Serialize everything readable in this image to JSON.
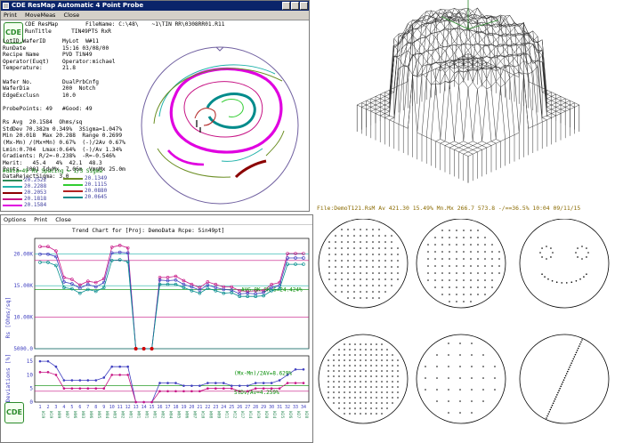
{
  "map_window": {
    "title": "CDE ResMap Automatic 4 Point Probe",
    "menu": [
      "Print",
      "MoveMeas",
      "Close"
    ],
    "logo": "CDE",
    "header_right": "FileName: C:\\48\\    ~1\\TIN RR\\0308RR01.R11",
    "header_rows": [
      "CDE ResMap",
      "RunTitle      TIN49PTS RxR"
    ],
    "info_lines": [
      "LotID.WaferID     MyLot  W#11",
      "RunDate           15:16 03/08/00",
      "Recipe Name       PVD TiN49",
      "Operator(Euqt)    Operator:michael",
      "Temperature:      21.8",
      "",
      "Wafer No.         DualPrbCnfg",
      "WaferDia          200  Notch",
      "EdgeExclusn       10.0",
      "",
      "ProbePoints: 49   #Good: 49",
      "",
      "Rs Avg  20.1584  Ohms/sq",
      "StdDev 70.382m 0.349%  3Sigma=1.047%",
      "Min 20.018  Max 20.288  Range 0.2699",
      "(Mx-Mn) /(Mx+Mn) 0.67%  (-)/2Av 0.67%",
      "Lmin:0.704  Lmax:0.64%  (-)/Av 1.34%",
      "Gradients: R/2=-0.238%  -R=-0.546%",
      "Merit:   45.4   4%  42.1  48.3",
      "Pcnts  1001 IdvMx  7.06m  VmnMx 25.0m",
      "DataRejectSigma: 3.0"
    ],
    "legend_header": "#data=49  Rs   Spacing = 1/3 Sigma",
    "legend_left": [
      {
        "value": "20.2522",
        "color": "#2e8b57"
      },
      {
        "value": "20.2288",
        "color": "#20b2aa"
      },
      {
        "value": "20.2053",
        "color": "#8b0000"
      },
      {
        "value": "20.1818",
        "color": "#c71585"
      },
      {
        "value": "20.1584",
        "color": "#e000e0"
      }
    ],
    "legend_right": [
      {
        "value": "20.1349",
        "color": "#6b8e23"
      },
      {
        "value": "20.1115",
        "color": "#32cd32"
      },
      {
        "value": "20.0880",
        "color": "#b22222"
      },
      {
        "value": "20.0645",
        "color": "#008b8b"
      }
    ]
  },
  "surface_caption": "File:DemoT121.RsM Av 421.30 15.49% Mn.Mx 266.7 573.8 -/==36.5% 10:04 09/11/15",
  "trend_window": {
    "title": "CDE ResMap Automatic 4 Point Probe",
    "menu": [
      "Options",
      "Print",
      "Close"
    ],
    "chart_title": "Trend Chart for [Proj: DemoData  Rcpe: 5in49pt]",
    "logo": "CDE",
    "y_label_top": "Rs [Ohms/sq]",
    "y_label_bottom": "Deviations [%]",
    "top_ticks": [
      "20.00K",
      "15.00K",
      "10.00K",
      "5000.0"
    ],
    "bottom_ticks": [
      "15",
      "10",
      "5",
      "0"
    ],
    "annot_top": "AVG.8K SK S=24.424%",
    "annot_mid": "(Mx-Mn)/2AV=8.629%",
    "annot_bot": "StDv/Av=4.259%",
    "x_ticks": [
      "1",
      "2",
      "3",
      "4",
      "5",
      "6",
      "7",
      "8",
      "9",
      "10",
      "11",
      "12",
      "13",
      "14",
      "15",
      "16",
      "17",
      "18",
      "19",
      "20",
      "21",
      "22",
      "23",
      "24",
      "25",
      "26",
      "27",
      "28",
      "29",
      "30",
      "31",
      "32",
      "33",
      "34"
    ],
    "wafer_labels": [
      "W19",
      "W19",
      "W09",
      "W07",
      "W06",
      "W03",
      "W06",
      "W05",
      "W04",
      "W03",
      "W02",
      "W01",
      "W01",
      "W01",
      "W01",
      "W02",
      "W04",
      "W05",
      "W06",
      "W07",
      "W10",
      "W08",
      "W09",
      "W11",
      "W12",
      "W17",
      "W14",
      "W19",
      "W20",
      "W24",
      "W25",
      "W26",
      "W27",
      "W28"
    ]
  },
  "chart_data": {
    "type": "line",
    "title": "Trend Chart for [Proj: DemoData  Rcpe: 5in49pt]",
    "x": [
      1,
      2,
      3,
      4,
      5,
      6,
      7,
      8,
      9,
      10,
      11,
      12,
      13,
      14,
      15,
      16,
      17,
      18,
      19,
      20,
      21,
      22,
      23,
      24,
      25,
      26,
      27,
      28,
      29,
      30,
      31,
      32,
      33,
      34
    ],
    "ylabel": "Rs [Ohms/sq]",
    "ylim": [
      5000,
      22500
    ],
    "series": [
      {
        "values": [
          21200,
          21200,
          20500,
          16300,
          16000,
          15100,
          15700,
          15500,
          16100,
          21100,
          21400,
          21000,
          5000,
          5000,
          5000,
          16300,
          16300,
          16500,
          15800,
          15200,
          14700,
          15600,
          15200,
          14800,
          14800,
          14200,
          14100,
          14200,
          14200,
          15200,
          15500,
          20100,
          20100,
          20100
        ]
      },
      {
        "values": [
          20000,
          20000,
          19600,
          15600,
          15300,
          14600,
          15200,
          14800,
          15500,
          20200,
          20300,
          20200,
          5000,
          5000,
          5000,
          15900,
          15800,
          15900,
          15200,
          14800,
          14300,
          15100,
          14700,
          14400,
          14300,
          13700,
          13800,
          13700,
          13900,
          14700,
          15000,
          19400,
          19400,
          19400
        ]
      },
      {
        "values": [
          18700,
          18700,
          18200,
          14700,
          14500,
          13800,
          14400,
          14100,
          14700,
          19000,
          19100,
          18800,
          5000,
          5000,
          5000,
          15200,
          15200,
          15200,
          14700,
          14200,
          13800,
          14600,
          14200,
          13800,
          13900,
          13300,
          13300,
          13300,
          13400,
          14200,
          14500,
          18400,
          18400,
          18400
        ]
      }
    ]
  }
}
